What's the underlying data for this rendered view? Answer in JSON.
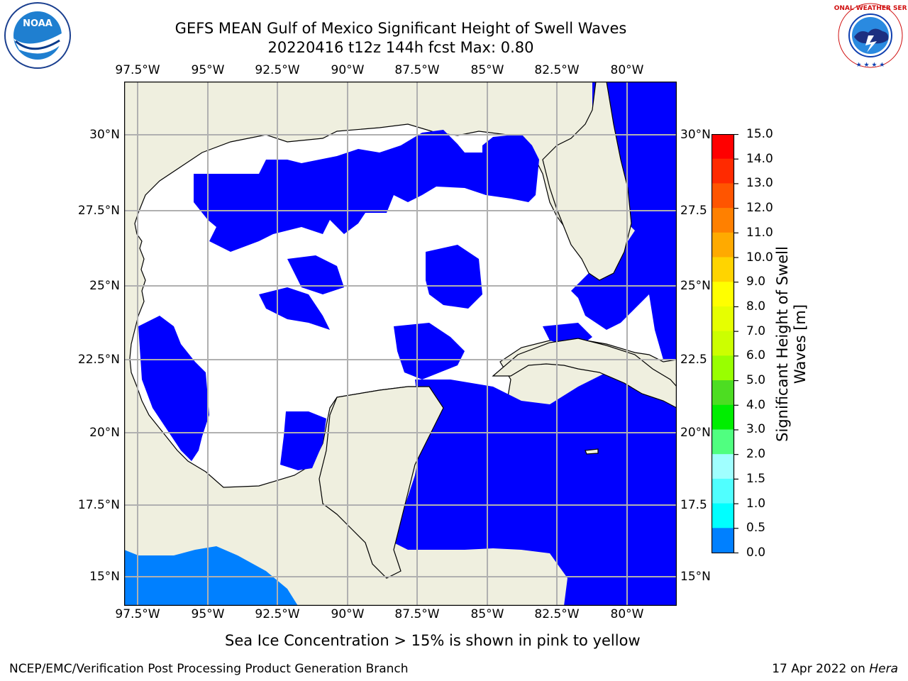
{
  "title": {
    "line1": "GEFS MEAN Gulf of Mexico Significant Height of Swell Waves",
    "line2": "20220416 t12z 144h fcst   Max: 0.80"
  },
  "logos": {
    "left": {
      "icon": "noaa-logo",
      "text": "NOAA"
    },
    "right": {
      "icon": "national-weather-service-logo",
      "text": "NATIONAL WEATHER SERVICE"
    }
  },
  "map": {
    "lon_ticks": [
      "97.5°W",
      "95°W",
      "92.5°W",
      "90°W",
      "87.5°W",
      "85°W",
      "82.5°W",
      "80°W"
    ],
    "lat_ticks_left": [
      "30°N",
      "27.5°N",
      "25°N",
      "22.5°N",
      "20°N",
      "17.5°N",
      "15°N"
    ],
    "lat_ticks_right": [
      "30°N",
      "27.5",
      "25°N",
      "22.5",
      "20°N",
      "17.5",
      "15°N"
    ],
    "lon_range": [
      -98,
      -78.2
    ],
    "lat_range": [
      14,
      31.6
    ],
    "colors": {
      "land": "#efefdf",
      "no_data": "#ffffff",
      "band_0_0_5": "#0000ff",
      "band_0_5_1_0": "#0080ff",
      "grid": "#b0b0b0"
    }
  },
  "colorbar": {
    "title_line1": "Significant Height of Swell",
    "title_line2": "Waves [m]",
    "labels": [
      "15.0",
      "14.0",
      "13.0",
      "12.0",
      "11.0",
      "10.0",
      "9.0",
      "8.0",
      "7.0",
      "6.0",
      "5.0",
      "4.0",
      "3.0",
      "2.0",
      "1.5",
      "1.0",
      "0.5",
      "0.0"
    ],
    "colors": [
      "#ff0000",
      "#ff2a00",
      "#ff5500",
      "#ff8000",
      "#ffaa00",
      "#ffd400",
      "#ffff00",
      "#e6ff00",
      "#ccff00",
      "#99ff00",
      "#4ddd22",
      "#00ee00",
      "#50ff80",
      "#a0ffff",
      "#50ffff",
      "#00ffff",
      "#0080ff",
      "#0000ff"
    ]
  },
  "note": "Sea Ice Concentration > 15% is shown in pink to yellow",
  "footer": {
    "left": "NCEP/EMC/Verification Post Processing Product Generation Branch",
    "right_date": "17 Apr 2022 on ",
    "right_host": "Hera"
  }
}
